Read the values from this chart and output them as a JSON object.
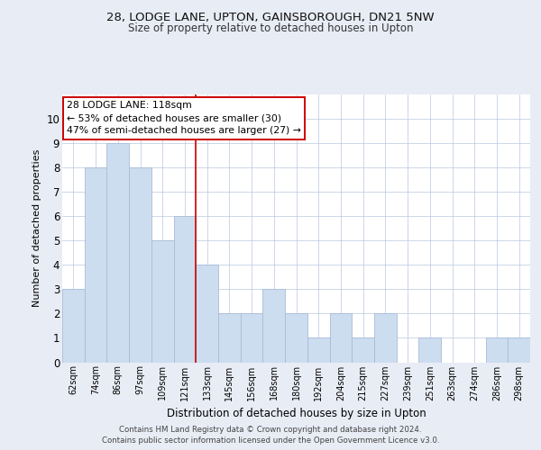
{
  "title1": "28, LODGE LANE, UPTON, GAINSBOROUGH, DN21 5NW",
  "title2": "Size of property relative to detached houses in Upton",
  "xlabel": "Distribution of detached houses by size in Upton",
  "ylabel": "Number of detached properties",
  "categories": [
    "62sqm",
    "74sqm",
    "86sqm",
    "97sqm",
    "109sqm",
    "121sqm",
    "133sqm",
    "145sqm",
    "156sqm",
    "168sqm",
    "180sqm",
    "192sqm",
    "204sqm",
    "215sqm",
    "227sqm",
    "239sqm",
    "251sqm",
    "263sqm",
    "274sqm",
    "286sqm",
    "298sqm"
  ],
  "values": [
    3,
    8,
    9,
    8,
    5,
    6,
    4,
    2,
    2,
    3,
    2,
    1,
    2,
    1,
    2,
    0,
    1,
    0,
    0,
    1,
    1
  ],
  "bar_color": "#ccddef",
  "bar_edge_color": "#aabbd8",
  "vline_x_idx": 5,
  "vline_color": "#cc0000",
  "annotation_text": "28 LODGE LANE: 118sqm\n← 53% of detached houses are smaller (30)\n47% of semi-detached houses are larger (27) →",
  "annotation_box_color": "#ffffff",
  "annotation_box_edge": "#cc0000",
  "ylim": [
    0,
    11
  ],
  "footnote": "Contains HM Land Registry data © Crown copyright and database right 2024.\nContains public sector information licensed under the Open Government Licence v3.0.",
  "bg_color": "#e8ecf5",
  "plot_bg_color": "#ffffff"
}
